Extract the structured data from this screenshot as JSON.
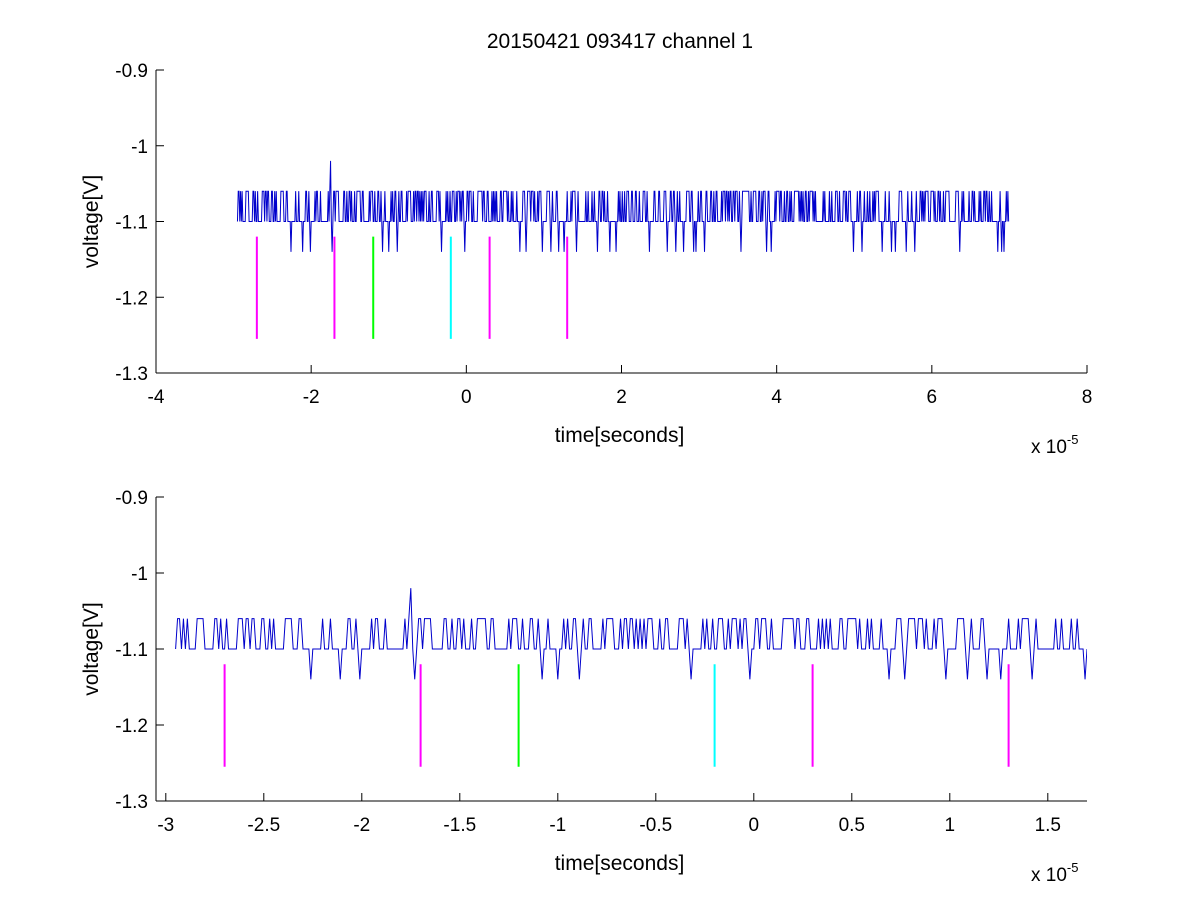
{
  "figure": {
    "title": "20150421 093417 channel 1"
  },
  "colors": {
    "signal": "#0000cc",
    "magenta": "#ff00ff",
    "green": "#00ff00",
    "cyan": "#00ffff",
    "axis": "#000000"
  },
  "chart_data": [
    {
      "type": "line",
      "title": "20150421 093417 channel 1",
      "xlabel": "time[seconds]",
      "ylabel": "voltage[V]",
      "x_exponent_label": "x 10",
      "x_exponent": "-5",
      "xlim": [
        -4e-05,
        8e-05
      ],
      "ylim": [
        -1.3,
        -0.9
      ],
      "x_ticks": [
        -4e-05,
        -2e-05,
        0,
        2e-05,
        4e-05,
        6e-05,
        8e-05
      ],
      "x_tick_labels": [
        "-4",
        "-2",
        "0",
        "2",
        "4",
        "6",
        "8"
      ],
      "y_ticks": [
        -0.9,
        -1.0,
        -1.1,
        -1.2,
        -1.3
      ],
      "y_tick_labels": [
        "-0.9",
        "-1",
        "-1.1",
        "-1.2",
        "-1.3"
      ],
      "grid": false,
      "series": [
        {
          "kind": "noise-trace",
          "color": "#0000cc",
          "x_range": [
            -2.95e-05,
            7e-05
          ],
          "baseline": -1.1,
          "levels": [
            -1.14,
            -1.1,
            -1.06
          ],
          "spike": {
            "x": -1.75e-05,
            "y": -1.02
          }
        }
      ],
      "markers": [
        {
          "x": -2.7e-05,
          "y_top": -1.12,
          "y_bottom": -1.255,
          "color": "magenta"
        },
        {
          "x": -1.7e-05,
          "y_top": -1.12,
          "y_bottom": -1.255,
          "color": "magenta"
        },
        {
          "x": -1.2e-05,
          "y_top": -1.12,
          "y_bottom": -1.255,
          "color": "green"
        },
        {
          "x": -2e-06,
          "y_top": -1.12,
          "y_bottom": -1.255,
          "color": "cyan"
        },
        {
          "x": 3e-06,
          "y_top": -1.12,
          "y_bottom": -1.255,
          "color": "magenta"
        },
        {
          "x": 1.3e-05,
          "y_top": -1.12,
          "y_bottom": -1.255,
          "color": "magenta"
        }
      ]
    },
    {
      "type": "line",
      "title": "",
      "xlabel": "time[seconds]",
      "ylabel": "voltage[V]",
      "x_exponent_label": "x 10",
      "x_exponent": "-5",
      "xlim": [
        -3.05e-05,
        1.7e-05
      ],
      "ylim": [
        -1.3,
        -0.9
      ],
      "x_ticks": [
        -3e-05,
        -2.5e-05,
        -2e-05,
        -1.5e-05,
        -1e-05,
        -5e-06,
        0,
        5e-06,
        1e-05,
        1.5e-05
      ],
      "x_tick_labels": [
        "-3",
        "-2.5",
        "-2",
        "-1.5",
        "-1",
        "-0.5",
        "0",
        "0.5",
        "1",
        "1.5"
      ],
      "y_ticks": [
        -0.9,
        -1.0,
        -1.1,
        -1.2,
        -1.3
      ],
      "y_tick_labels": [
        "-0.9",
        "-1",
        "-1.1",
        "-1.2",
        "-1.3"
      ],
      "grid": false,
      "series": [
        {
          "kind": "noise-trace",
          "color": "#0000cc",
          "x_range": [
            -2.95e-05,
            1.7e-05
          ],
          "baseline": -1.1,
          "levels": [
            -1.14,
            -1.1,
            -1.06
          ],
          "spike": {
            "x": -1.75e-05,
            "y": -1.02
          }
        }
      ],
      "markers": [
        {
          "x": -2.7e-05,
          "y_top": -1.12,
          "y_bottom": -1.255,
          "color": "magenta"
        },
        {
          "x": -1.7e-05,
          "y_top": -1.12,
          "y_bottom": -1.255,
          "color": "magenta"
        },
        {
          "x": -1.2e-05,
          "y_top": -1.12,
          "y_bottom": -1.255,
          "color": "green"
        },
        {
          "x": -2e-06,
          "y_top": -1.12,
          "y_bottom": -1.255,
          "color": "cyan"
        },
        {
          "x": 3e-06,
          "y_top": -1.12,
          "y_bottom": -1.255,
          "color": "magenta"
        },
        {
          "x": 1.3e-05,
          "y_top": -1.12,
          "y_bottom": -1.255,
          "color": "magenta"
        }
      ]
    }
  ]
}
